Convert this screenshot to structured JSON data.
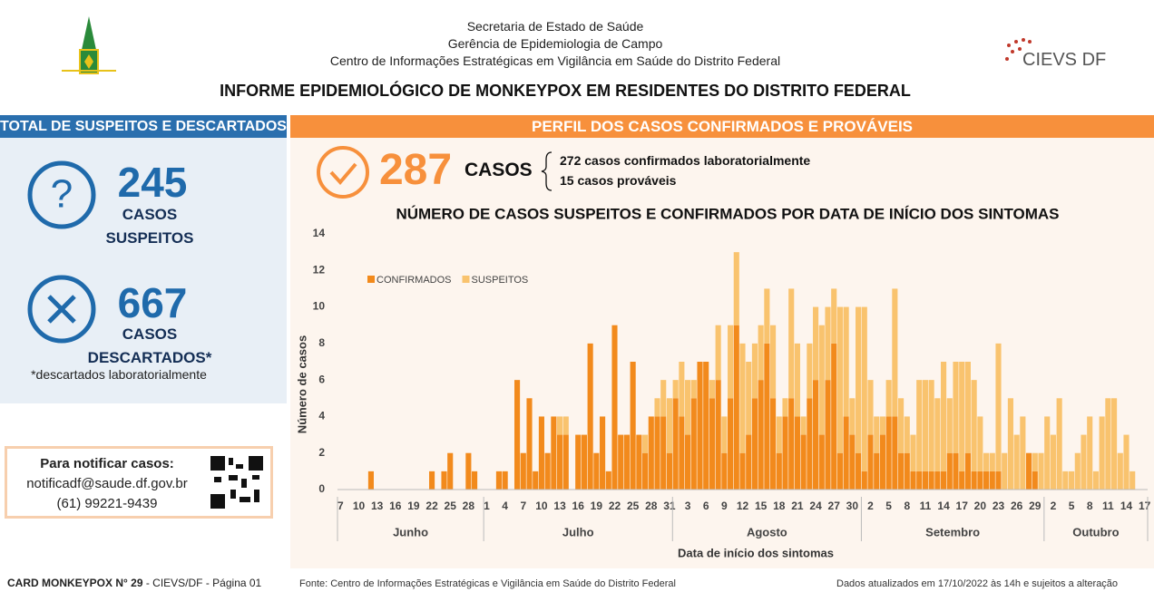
{
  "header": {
    "lines": [
      "Secretaria de Estado de Saúde",
      "Gerência de Epidemiologia de Campo",
      "Centro de Informações Estratégicas em Vigilância em Saúde do Distrito Federal"
    ],
    "logo_text": "CIEVS DF",
    "title": "INFORME EPIDEMIOLÓGICO DE MONKEYPOX EM RESIDENTES DO DISTRITO FEDERAL"
  },
  "left_panel": {
    "title": "TOTAL DE SUSPEITOS E DESCARTADOS",
    "suspects": {
      "value": 245,
      "label": [
        "CASOS",
        "SUSPEITOS"
      ]
    },
    "discarded": {
      "value": 667,
      "label": [
        "CASOS",
        "DESCARTADOS*"
      ],
      "note": "*descartados laboratorialmente"
    }
  },
  "notify": {
    "title": "Para notificar casos:",
    "email": "notificadf@saude.df.gov.br",
    "phone": "(61) 99221-9439"
  },
  "right_panel": {
    "title": "PERFIL DOS CASOS CONFIRMADOS E PROVÁVEIS",
    "cases": {
      "value": 287,
      "label": "CASOS",
      "details": [
        "272 casos confirmados laboratorialmente",
        "15 casos prováveis"
      ]
    }
  },
  "footer": {
    "card": "CARD MONKEYPOX N° 29",
    "card_suffix": "- CIEVS/DF - Página 01",
    "source": "Fonte: Centro de Informações Estratégicas e Vigilância em Saúde do Distrito Federal",
    "updated": "Dados atualizados em 17/10/2022 às 14h e sujeitos a alteração"
  },
  "chart_data": {
    "type": "bar",
    "stacked": true,
    "title": "NÚMERO DE CASOS SUSPEITOS E CONFIRMADOS POR DATA DE INÍCIO DOS SINTOMAS",
    "y_label": "Número de casos",
    "x_label": "Data de início dos sintomas",
    "legend": "top-left",
    "grid": false,
    "ylim": [
      0,
      14
    ],
    "yticks": [
      0,
      2,
      4,
      6,
      8,
      10,
      12,
      14
    ],
    "x_groups": [
      "Junho",
      "Julho",
      "Agosto",
      "Setembro",
      "Outubro"
    ],
    "categories": [
      "7",
      null,
      null,
      "10",
      null,
      null,
      "13",
      null,
      null,
      "16",
      null,
      null,
      "19",
      null,
      null,
      "22",
      null,
      null,
      "25",
      null,
      null,
      "28",
      null,
      null,
      "1",
      null,
      null,
      "4",
      null,
      null,
      "7",
      null,
      null,
      "10",
      null,
      null,
      "13",
      null,
      null,
      "16",
      null,
      null,
      "19",
      null,
      null,
      "22",
      null,
      null,
      "25",
      null,
      null,
      "28",
      null,
      null,
      "31",
      null,
      null,
      "3",
      null,
      null,
      "6",
      null,
      null,
      "9",
      null,
      null,
      "12",
      null,
      null,
      "15",
      null,
      null,
      "18",
      null,
      null,
      "21",
      null,
      null,
      "24",
      null,
      null,
      "27",
      null,
      null,
      "30",
      null,
      null,
      "2",
      null,
      null,
      "5",
      null,
      null,
      "8",
      null,
      null,
      "11",
      null,
      null,
      "14",
      null,
      null,
      "17",
      null,
      null,
      "20",
      null,
      null,
      "23",
      null,
      null,
      "26",
      null,
      null,
      "29",
      null,
      null,
      "2",
      null,
      null,
      "5",
      null,
      null,
      "8",
      null,
      null,
      "11",
      null,
      null,
      "14",
      null,
      null,
      "17"
    ],
    "series": [
      {
        "name": "CONFIRMADOS",
        "color": "#f28a1c",
        "values": [
          0,
          0,
          0,
          0,
          0,
          1,
          0,
          0,
          0,
          0,
          0,
          0,
          0,
          0,
          0,
          1,
          0,
          1,
          2,
          0,
          0,
          2,
          1,
          0,
          0,
          0,
          1,
          1,
          0,
          6,
          2,
          5,
          1,
          4,
          2,
          4,
          3,
          3,
          0,
          3,
          3,
          8,
          2,
          4,
          1,
          9,
          3,
          3,
          7,
          3,
          2,
          4,
          4,
          4,
          2,
          5,
          4,
          3,
          5,
          7,
          7,
          5,
          6,
          2,
          5,
          9,
          2,
          3,
          5,
          6,
          8,
          5,
          2,
          4,
          5,
          4,
          3,
          5,
          6,
          3,
          6,
          8,
          2,
          4,
          3,
          2,
          1,
          3,
          2,
          3,
          4,
          4,
          2,
          2,
          1,
          1,
          1,
          1,
          1,
          1,
          2,
          2,
          1,
          2,
          1,
          1,
          1,
          1,
          1,
          0,
          0,
          0,
          0,
          2,
          1,
          0,
          0,
          0,
          0,
          0,
          0,
          0,
          0,
          0,
          0,
          0,
          0,
          0,
          0,
          0,
          0,
          0,
          0
        ]
      },
      {
        "name": "SUSPEITOS",
        "color": "#f9c36e",
        "values": [
          0,
          0,
          0,
          0,
          0,
          0,
          0,
          0,
          0,
          0,
          0,
          0,
          0,
          0,
          0,
          0,
          0,
          0,
          0,
          0,
          0,
          0,
          0,
          0,
          0,
          0,
          0,
          0,
          0,
          0,
          0,
          0,
          0,
          0,
          0,
          0,
          1,
          1,
          0,
          0,
          0,
          0,
          0,
          0,
          0,
          0,
          0,
          0,
          0,
          0,
          1,
          0,
          1,
          2,
          3,
          1,
          3,
          3,
          1,
          0,
          0,
          1,
          3,
          2,
          4,
          4,
          6,
          4,
          3,
          3,
          3,
          4,
          2,
          1,
          6,
          4,
          1,
          3,
          4,
          6,
          4,
          3,
          8,
          6,
          2,
          8,
          9,
          3,
          2,
          1,
          2,
          7,
          3,
          2,
          2,
          5,
          5,
          5,
          4,
          6,
          3,
          5,
          6,
          5,
          5,
          3,
          1,
          1,
          7,
          2,
          5,
          3,
          4,
          0,
          1,
          2,
          4,
          3,
          5,
          1,
          1,
          2,
          3,
          4,
          1,
          4,
          5,
          5,
          2,
          3,
          1,
          0,
          0
        ]
      }
    ]
  }
}
